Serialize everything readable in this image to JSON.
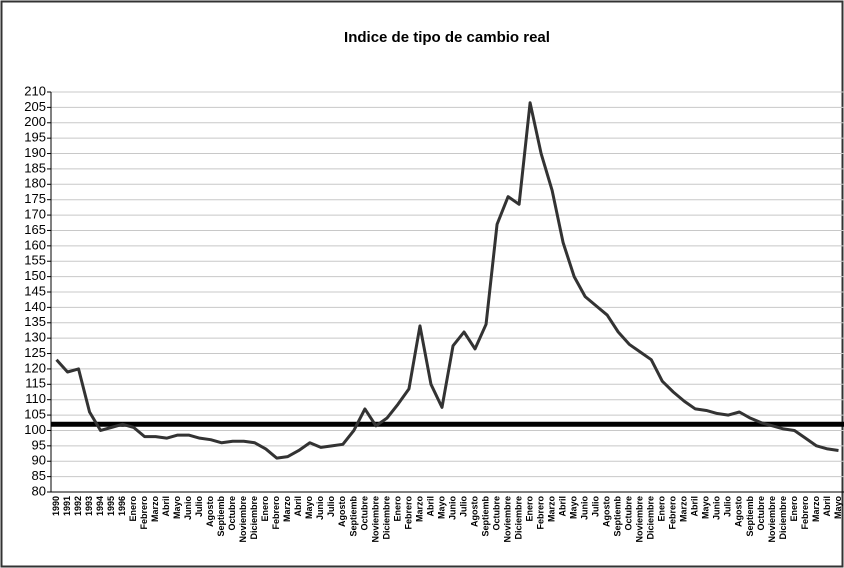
{
  "chart_data": {
    "type": "line",
    "title": "Indice de tipo de cambio real",
    "categories": [
      "1990",
      "1991",
      "1992",
      "1993",
      "1994",
      "1995",
      "1996",
      "Enero",
      "Febrero",
      "Marzo",
      "Abril",
      "Mayo",
      "Junio",
      "Julio",
      "Agosto",
      "Septiemb",
      "Octubre",
      "Noviembre",
      "Diciembre",
      "Enero",
      "Febrero",
      "Marzo",
      "Abril",
      "Mayo",
      "Junio",
      "Julio",
      "Agosto",
      "Septiemb",
      "Octubre",
      "Noviembre",
      "Diciembre",
      "Enero",
      "Febrero",
      "Marzo",
      "Abril",
      "Mayo",
      "Junio",
      "Julio",
      "Agosto",
      "Septiemb",
      "Octubre",
      "Noviembre",
      "Diciembre",
      "Enero",
      "Febrero",
      "Marzo",
      "Abril",
      "Mayo",
      "Junio",
      "Julio",
      "Agosto",
      "Septiemb",
      "Octubre",
      "Noviembre",
      "Diciembre",
      "Enero",
      "Febrero",
      "Marzo",
      "Abril",
      "Mayo",
      "Junio",
      "Julio",
      "Agosto",
      "Septiemb",
      "Octubre",
      "Noviembre",
      "Diciembre",
      "Enero",
      "Febrero",
      "Marzo",
      "Abril",
      "Mayo"
    ],
    "values": [
      123,
      119,
      120,
      106,
      100,
      101,
      102,
      101,
      98,
      98,
      97.5,
      98.5,
      98.5,
      97.5,
      97,
      96,
      96.5,
      96.5,
      96,
      94,
      91,
      91.5,
      93.5,
      96,
      94.5,
      95,
      95.5,
      100,
      107,
      101.5,
      104,
      108.5,
      113.5,
      134,
      115,
      107.5,
      127.5,
      132,
      126.5,
      134.5,
      167,
      176,
      173.5,
      206.5,
      190,
      178,
      161,
      150,
      143.5,
      140.5,
      137.5,
      132,
      128,
      125.5,
      123,
      116,
      112.5,
      109.5,
      107,
      106.5,
      105.5,
      105,
      106,
      104,
      102.5,
      101.5,
      100.5,
      100,
      97.5,
      95,
      94,
      93.5
    ],
    "color": "#333333",
    "reference_line": 102,
    "reference_color": "#000000",
    "ylim": [
      80,
      210
    ],
    "yticks": [
      80,
      85,
      90,
      95,
      100,
      105,
      110,
      115,
      120,
      125,
      130,
      135,
      140,
      145,
      150,
      155,
      160,
      165,
      170,
      175,
      180,
      185,
      190,
      195,
      200,
      205,
      210
    ],
    "grid": true
  }
}
